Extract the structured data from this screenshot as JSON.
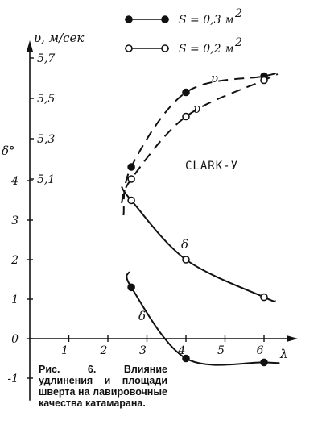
{
  "chart_data": {
    "type": "line",
    "xlabel": "λ",
    "x_ticks": [
      1,
      2,
      3,
      4,
      5,
      6
    ],
    "xlim": [
      0,
      6.6
    ],
    "left_axis": {
      "label": "δ°",
      "ticks": [
        -1,
        0,
        1,
        2,
        3,
        4
      ],
      "lim": [
        -1.2,
        4.7
      ]
    },
    "right_axis": {
      "label": "υ, м/сек",
      "ticks": [
        "5,1",
        "5,3",
        "5,5",
        "5,7"
      ],
      "tick_values": [
        5.1,
        5.3,
        5.5,
        5.7
      ],
      "lim": [
        4.95,
        5.75
      ]
    },
    "legend": [
      {
        "label": "S = 0,3 м",
        "exponent": "2",
        "marker": "filled"
      },
      {
        "label": "S = 0,2 м",
        "exponent": "2",
        "marker": "open"
      }
    ],
    "annotation": "CLARK-У",
    "series": [
      {
        "name": "υ",
        "axis": "right",
        "style": "dashed",
        "marker": "filled",
        "x": [
          2.6,
          4.0,
          6.0
        ],
        "y": [
          5.16,
          5.53,
          5.61
        ]
      },
      {
        "name": "υ",
        "axis": "right",
        "style": "dashed",
        "marker": "open",
        "x": [
          2.6,
          4.0,
          6.0
        ],
        "y": [
          5.1,
          5.41,
          5.59
        ]
      },
      {
        "name": "δ",
        "axis": "left",
        "style": "solid",
        "marker": "open",
        "x": [
          2.6,
          4.0,
          6.0
        ],
        "y": [
          3.5,
          2.0,
          1.05
        ]
      },
      {
        "name": "δ",
        "axis": "left",
        "style": "solid",
        "marker": "filled",
        "x": [
          2.6,
          4.0,
          6.0
        ],
        "y": [
          1.3,
          -0.5,
          -0.6
        ]
      }
    ]
  },
  "caption": {
    "prefix": "Рис. 6.",
    "text": "Влияние удлинения и площади шверта на лавировочные качества катамарана."
  }
}
